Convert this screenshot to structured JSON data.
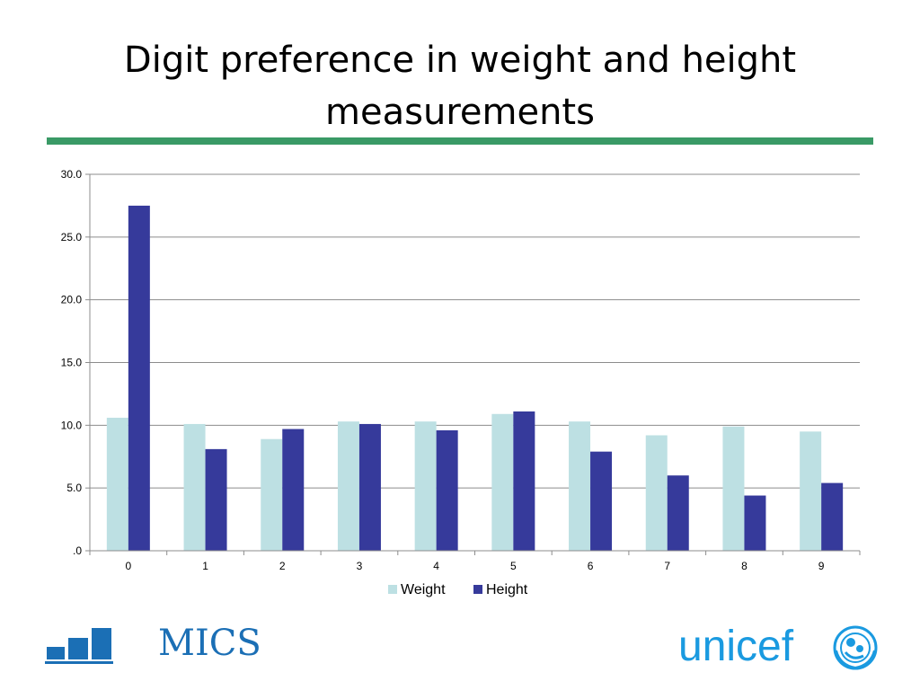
{
  "slide": {
    "title": "Digit preference in weight and height measurements"
  },
  "colors": {
    "accent_rule": "#3a9a66",
    "weight": "#bde0e3",
    "height": "#363a9b",
    "brand_blue": "#1a9ae0",
    "mics_blue": "#1b6fb5"
  },
  "chart_data": {
    "type": "bar",
    "categories": [
      "0",
      "1",
      "2",
      "3",
      "4",
      "5",
      "6",
      "7",
      "8",
      "9"
    ],
    "series": [
      {
        "name": "Weight",
        "values": [
          10.6,
          10.1,
          8.9,
          10.3,
          10.3,
          10.9,
          10.3,
          9.2,
          9.9,
          9.5
        ]
      },
      {
        "name": "Height",
        "values": [
          27.5,
          8.1,
          9.7,
          10.1,
          9.6,
          11.1,
          7.9,
          6.0,
          4.4,
          5.4
        ]
      }
    ],
    "ylim": [
      0,
      30
    ],
    "yticks": [
      0,
      5,
      10,
      15,
      20,
      25,
      30
    ],
    "ytick_labels": [
      ".0",
      "5.0",
      "10.0",
      "15.0",
      "20.0",
      "25.0",
      "30.0"
    ],
    "grid": true,
    "legend": "bottom"
  },
  "logos": {
    "mics_text": "MICS",
    "unicef_text": "unicef"
  }
}
